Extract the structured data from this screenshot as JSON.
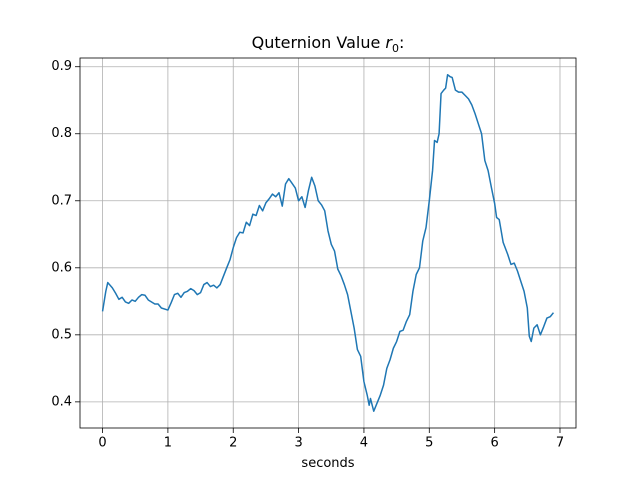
{
  "chart_data": {
    "type": "line",
    "title": [
      "Quternion Value ",
      "r",
      "0",
      ":"
    ],
    "xlabel": "seconds",
    "x": [
      0,
      0.05,
      0.08,
      0.15,
      0.2,
      0.25,
      0.3,
      0.35,
      0.4,
      0.45,
      0.5,
      0.55,
      0.6,
      0.65,
      0.7,
      0.8,
      0.85,
      0.9,
      1.0,
      1.05,
      1.1,
      1.15,
      1.2,
      1.25,
      1.3,
      1.35,
      1.4,
      1.45,
      1.5,
      1.55,
      1.6,
      1.65,
      1.7,
      1.75,
      1.8,
      1.9,
      1.95,
      2.0,
      2.05,
      2.1,
      2.15,
      2.2,
      2.25,
      2.3,
      2.35,
      2.4,
      2.45,
      2.5,
      2.55,
      2.6,
      2.65,
      2.7,
      2.75,
      2.8,
      2.85,
      2.9,
      2.95,
      3.0,
      3.05,
      3.1,
      3.15,
      3.2,
      3.25,
      3.3,
      3.35,
      3.4,
      3.45,
      3.5,
      3.55,
      3.6,
      3.65,
      3.7,
      3.75,
      3.8,
      3.85,
      3.9,
      3.95,
      4.0,
      4.05,
      4.08,
      4.1,
      4.15,
      4.2,
      4.25,
      4.3,
      4.35,
      4.4,
      4.45,
      4.5,
      4.55,
      4.6,
      4.65,
      4.7,
      4.75,
      4.8,
      4.85,
      4.9,
      4.95,
      5.0,
      5.05,
      5.08,
      5.12,
      5.15,
      5.18,
      5.22,
      5.25,
      5.28,
      5.32,
      5.35,
      5.4,
      5.45,
      5.5,
      5.55,
      5.6,
      5.65,
      5.7,
      5.75,
      5.8,
      5.85,
      5.9,
      5.95,
      6.0,
      6.03,
      6.07,
      6.1,
      6.13,
      6.2,
      6.25,
      6.3,
      6.35,
      6.4,
      6.45,
      6.5,
      6.53,
      6.56,
      6.6,
      6.65,
      6.7,
      6.75,
      6.8,
      6.85,
      6.9
    ],
    "series": [
      {
        "color": "#1f77b4",
        "values": [
          0.535,
          0.565,
          0.578,
          0.57,
          0.562,
          0.553,
          0.556,
          0.549,
          0.547,
          0.552,
          0.55,
          0.556,
          0.56,
          0.559,
          0.552,
          0.546,
          0.546,
          0.54,
          0.537,
          0.548,
          0.56,
          0.562,
          0.556,
          0.563,
          0.565,
          0.569,
          0.566,
          0.56,
          0.563,
          0.575,
          0.578,
          0.572,
          0.574,
          0.57,
          0.575,
          0.6,
          0.612,
          0.63,
          0.645,
          0.653,
          0.652,
          0.668,
          0.663,
          0.68,
          0.678,
          0.693,
          0.685,
          0.697,
          0.703,
          0.71,
          0.706,
          0.712,
          0.692,
          0.725,
          0.733,
          0.726,
          0.719,
          0.7,
          0.706,
          0.69,
          0.715,
          0.735,
          0.722,
          0.7,
          0.694,
          0.685,
          0.655,
          0.635,
          0.625,
          0.598,
          0.588,
          0.575,
          0.56,
          0.535,
          0.51,
          0.478,
          0.468,
          0.43,
          0.41,
          0.395,
          0.405,
          0.386,
          0.398,
          0.41,
          0.425,
          0.45,
          0.463,
          0.48,
          0.49,
          0.505,
          0.507,
          0.52,
          0.53,
          0.565,
          0.59,
          0.6,
          0.64,
          0.66,
          0.7,
          0.745,
          0.79,
          0.787,
          0.8,
          0.86,
          0.865,
          0.868,
          0.888,
          0.885,
          0.884,
          0.865,
          0.862,
          0.862,
          0.857,
          0.852,
          0.843,
          0.83,
          0.815,
          0.8,
          0.76,
          0.745,
          0.72,
          0.696,
          0.675,
          0.672,
          0.655,
          0.638,
          0.62,
          0.605,
          0.607,
          0.595,
          0.58,
          0.565,
          0.54,
          0.498,
          0.49,
          0.51,
          0.515,
          0.5,
          0.512,
          0.525,
          0.527,
          0.533
        ]
      }
    ],
    "xlim": [
      -0.345,
      7.245
    ],
    "xticks": [
      0,
      1,
      2,
      3,
      4,
      5,
      6,
      7
    ],
    "ylim": [
      0.361,
      0.913
    ],
    "yticks": [
      0.4,
      0.5,
      0.6,
      0.7,
      0.8,
      0.9
    ],
    "grid": true
  }
}
